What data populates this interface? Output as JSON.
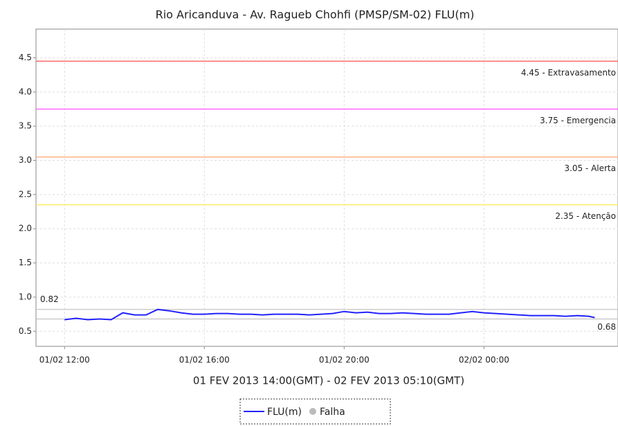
{
  "chart_data": {
    "type": "line",
    "title": "Rio Aricanduva - Av. Ragueb Chohfi (PMSP/SM-02) FLU(m)",
    "x_label": "01 FEV 2013 14:00(GMT) - 02 FEV 2013 05:10(GMT)",
    "x": [
      "01/02 12:00",
      "01/02 12:20",
      "01/02 12:40",
      "01/02 13:00",
      "01/02 13:20",
      "01/02 13:40",
      "01/02 14:00",
      "01/02 14:20",
      "01/02 14:40",
      "01/02 15:00",
      "01/02 15:20",
      "01/02 15:40",
      "01/02 16:00",
      "01/02 16:20",
      "01/02 16:40",
      "01/02 17:00",
      "01/02 17:20",
      "01/02 17:40",
      "01/02 18:00",
      "01/02 18:20",
      "01/02 18:40",
      "01/02 19:00",
      "01/02 19:20",
      "01/02 19:40",
      "01/02 20:00",
      "01/02 20:20",
      "01/02 20:40",
      "01/02 21:00",
      "01/02 21:20",
      "01/02 21:40",
      "01/02 22:00",
      "01/02 22:20",
      "01/02 22:40",
      "01/02 23:00",
      "01/02 23:20",
      "01/02 23:40",
      "02/02 00:00",
      "02/02 00:20",
      "02/02 00:40",
      "02/02 01:00",
      "02/02 01:20",
      "02/02 01:40",
      "02/02 02:00",
      "02/02 02:20",
      "02/02 02:40",
      "02/02 03:00",
      "02/02 03:10"
    ],
    "series": [
      {
        "name": "FLU(m)",
        "color": "#2222ff",
        "values": [
          0.67,
          0.69,
          0.67,
          0.68,
          0.67,
          0.77,
          0.74,
          0.74,
          0.82,
          0.8,
          0.77,
          0.75,
          0.75,
          0.76,
          0.76,
          0.75,
          0.75,
          0.74,
          0.75,
          0.75,
          0.75,
          0.74,
          0.75,
          0.76,
          0.79,
          0.77,
          0.78,
          0.76,
          0.76,
          0.77,
          0.76,
          0.75,
          0.75,
          0.75,
          0.77,
          0.79,
          0.77,
          0.76,
          0.75,
          0.74,
          0.73,
          0.73,
          0.73,
          0.72,
          0.73,
          0.72,
          0.7
        ]
      }
    ],
    "legend_extra": [
      {
        "name": "Falha",
        "color": "#bbbbbb"
      }
    ],
    "thresholds": [
      {
        "value": 4.45,
        "label": "4.45 - Extravasamento",
        "color": "#ff6666"
      },
      {
        "value": 3.75,
        "label": "3.75 - Emergencia",
        "color": "#ff66ff"
      },
      {
        "value": 3.05,
        "label": "3.05 - Alerta",
        "color": "#ffb080"
      },
      {
        "value": 2.35,
        "label": "2.35 - Atenção",
        "color": "#ffee66"
      }
    ],
    "markers": [
      {
        "value": 0.82,
        "color": "#b8b8b8"
      },
      {
        "value": 0.68,
        "color": "#b8b8b8"
      }
    ],
    "xlim": [
      "01/02 11:11",
      "02/02 03:50"
    ],
    "xticks": [
      "01/02 12:00",
      "01/02 16:00",
      "01/02 20:00",
      "02/02 00:00"
    ],
    "ylim": [
      0.28,
      4.92
    ],
    "yticks": [
      0.5,
      {
        "value": 1,
        "label": "1.0"
      },
      1.5,
      {
        "value": 2,
        "label": "2.0"
      },
      2.5,
      {
        "value": 3,
        "label": "3.0"
      },
      3.5,
      {
        "value": 4,
        "label": "4.0"
      },
      4.5
    ],
    "grid": true
  }
}
